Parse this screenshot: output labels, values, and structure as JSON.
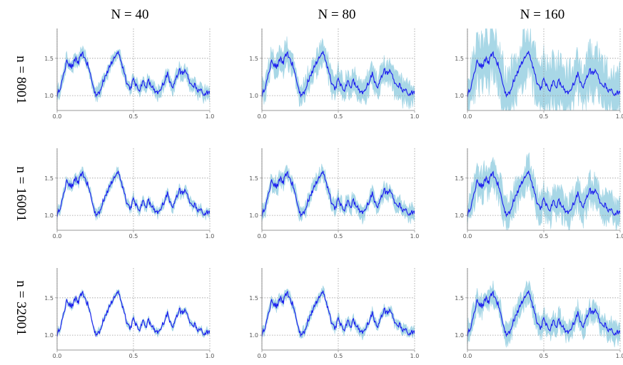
{
  "column_titles": [
    "N = 40",
    "N = 80",
    "N = 160"
  ],
  "row_titles": [
    "n = 8001",
    "n = 16001",
    "n = 32001"
  ],
  "colors": {
    "estimate_line": "#1a1aef",
    "band": "#a8d7e6"
  },
  "chart_data": {
    "type": "line",
    "layout": "3x3 grid of line plots with shaded confidence bands",
    "xlim": [
      0,
      1
    ],
    "ylim": [
      0.8,
      1.9
    ],
    "xticks": [
      0.0,
      0.5,
      1.0
    ],
    "xtick_labels": [
      "0.0",
      "0.5",
      "1.0"
    ],
    "yticks": [
      1.0,
      1.5
    ],
    "ytick_labels": [
      "1.0",
      "1.5"
    ],
    "grid": "dotted lines at x = 0, 0.5, 1 and y = 1.0, 1.5",
    "main_series_points": [
      [
        0.0,
        1.02
      ],
      [
        0.02,
        1.1
      ],
      [
        0.04,
        1.25
      ],
      [
        0.06,
        1.45
      ],
      [
        0.08,
        1.43
      ],
      [
        0.1,
        1.38
      ],
      [
        0.12,
        1.5
      ],
      [
        0.14,
        1.44
      ],
      [
        0.16,
        1.57
      ],
      [
        0.18,
        1.52
      ],
      [
        0.2,
        1.42
      ],
      [
        0.22,
        1.28
      ],
      [
        0.24,
        1.08
      ],
      [
        0.26,
        1.02
      ],
      [
        0.28,
        1.05
      ],
      [
        0.3,
        1.2
      ],
      [
        0.32,
        1.28
      ],
      [
        0.34,
        1.38
      ],
      [
        0.36,
        1.45
      ],
      [
        0.38,
        1.5
      ],
      [
        0.4,
        1.6
      ],
      [
        0.42,
        1.45
      ],
      [
        0.44,
        1.32
      ],
      [
        0.46,
        1.15
      ],
      [
        0.48,
        1.1
      ],
      [
        0.5,
        1.22
      ],
      [
        0.52,
        1.12
      ],
      [
        0.54,
        1.08
      ],
      [
        0.56,
        1.18
      ],
      [
        0.58,
        1.12
      ],
      [
        0.6,
        1.2
      ],
      [
        0.62,
        1.12
      ],
      [
        0.64,
        1.05
      ],
      [
        0.66,
        1.02
      ],
      [
        0.68,
        1.08
      ],
      [
        0.7,
        1.18
      ],
      [
        0.72,
        1.3
      ],
      [
        0.74,
        1.2
      ],
      [
        0.76,
        1.1
      ],
      [
        0.78,
        1.25
      ],
      [
        0.8,
        1.33
      ],
      [
        0.82,
        1.28
      ],
      [
        0.84,
        1.35
      ],
      [
        0.86,
        1.22
      ],
      [
        0.88,
        1.12
      ],
      [
        0.9,
        1.15
      ],
      [
        0.92,
        1.05
      ],
      [
        0.94,
        1.08
      ],
      [
        0.96,
        1.02
      ],
      [
        0.98,
        1.05
      ],
      [
        1.0,
        1.04
      ]
    ],
    "panels": [
      {
        "row": 0,
        "col": 0,
        "n": 8001,
        "N": 40,
        "band_halfwidth": 0.07
      },
      {
        "row": 0,
        "col": 1,
        "n": 8001,
        "N": 80,
        "band_halfwidth": 0.13
      },
      {
        "row": 0,
        "col": 2,
        "n": 8001,
        "N": 160,
        "band_halfwidth": 0.28
      },
      {
        "row": 1,
        "col": 0,
        "n": 16001,
        "N": 40,
        "band_halfwidth": 0.05
      },
      {
        "row": 1,
        "col": 1,
        "n": 16001,
        "N": 80,
        "band_halfwidth": 0.08
      },
      {
        "row": 1,
        "col": 2,
        "n": 16001,
        "N": 160,
        "band_halfwidth": 0.17
      },
      {
        "row": 2,
        "col": 0,
        "n": 32001,
        "N": 40,
        "band_halfwidth": 0.03
      },
      {
        "row": 2,
        "col": 1,
        "n": 32001,
        "N": 80,
        "band_halfwidth": 0.05
      },
      {
        "row": 2,
        "col": 2,
        "n": 32001,
        "N": 160,
        "band_halfwidth": 0.11
      }
    ]
  }
}
